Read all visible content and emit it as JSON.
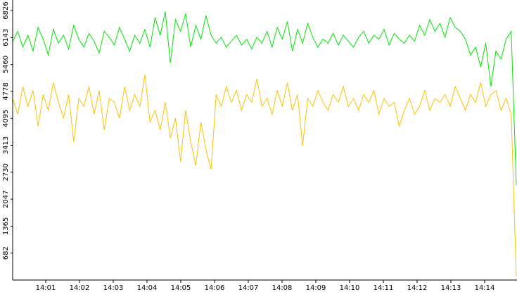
{
  "chart_data": {
    "type": "line",
    "ylim": [
      0,
      6826
    ],
    "yticks": [
      682,
      1365,
      2047,
      2730,
      3413,
      4095,
      4778,
      5460,
      6143,
      6826
    ],
    "xticks": [
      "14:01",
      "14:02",
      "14:03",
      "14:04",
      "14:05",
      "14:06",
      "14:07",
      "14:08",
      "14:09",
      "14:10",
      "14:11",
      "14:12",
      "14:13",
      "14:14"
    ],
    "series": [
      {
        "color": "#00e600",
        "values": [
          6050,
          6300,
          5900,
          6200,
          5800,
          6400,
          6100,
          5700,
          6350,
          6000,
          6200,
          5850,
          6450,
          6100,
          5900,
          6250,
          6050,
          5750,
          6300,
          6150,
          5950,
          6400,
          6100,
          5800,
          6200,
          6000,
          6350,
          5900,
          6650,
          6200,
          6800,
          5500,
          6600,
          6300,
          6750,
          5900,
          6450,
          6100,
          6700,
          6200,
          6000,
          6150,
          5900,
          6050,
          6200,
          5950,
          6100,
          5850,
          6150,
          6000,
          6300,
          5900,
          6400,
          6100,
          6550,
          5800,
          6350,
          6000,
          6500,
          6150,
          5900,
          6100,
          6000,
          6250,
          5950,
          6200,
          6050,
          5900,
          6150,
          6300,
          6000,
          6200,
          6100,
          6350,
          5950,
          6250,
          6100,
          6000,
          6200,
          6050,
          6450,
          6200,
          6600,
          6300,
          6500,
          6150,
          6650,
          6400,
          6300,
          6100,
          5700,
          5900,
          5400,
          6000,
          4900,
          5800,
          5600,
          6100,
          6300,
          2400
        ]
      },
      {
        "color": "#ffc000",
        "values": [
          4600,
          4200,
          4900,
          4400,
          4800,
          3900,
          4700,
          4300,
          5000,
          4500,
          4100,
          4700,
          3500,
          4600,
          4400,
          4900,
          4200,
          4800,
          3800,
          4600,
          4500,
          4100,
          4900,
          4300,
          4700,
          4400,
          5200,
          4000,
          4300,
          3800,
          4500,
          3600,
          4100,
          3000,
          4300,
          3500,
          2900,
          4000,
          3300,
          2800,
          4700,
          4400,
          4900,
          4500,
          4800,
          4300,
          4700,
          4500,
          5100,
          4400,
          4600,
          4200,
          4800,
          4400,
          5000,
          4300,
          4700,
          3400,
          4600,
          4400,
          4800,
          4500,
          4300,
          4700,
          4500,
          4900,
          4400,
          4600,
          4300,
          4700,
          4500,
          4800,
          4200,
          4600,
          4400,
          4500,
          3900,
          4300,
          4600,
          4200,
          4400,
          4800,
          4300,
          4600,
          4500,
          4700,
          4400,
          4900,
          4600,
          4300,
          4700,
          4500,
          5000,
          4400,
          4700,
          4800,
          4300,
          4600,
          4200,
          100
        ]
      }
    ]
  }
}
